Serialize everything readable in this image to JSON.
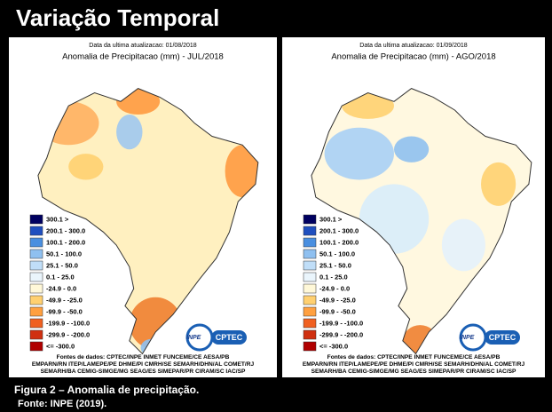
{
  "header": {
    "title": "Variação Temporal"
  },
  "panels": [
    {
      "updated": "Data da ultima atualizacao: 01/08/2018",
      "title": "Anomalia de Precipitacao (mm) - JUL/2018",
      "legend": [
        "300.1 >",
        "200.1 - 300.0",
        "100.1 - 200.0",
        "50.1 - 100.0",
        "25.1 - 50.0",
        "0.1 - 25.0",
        "-24.9 - 0.0",
        "-49.9 - -25.0",
        "-99.9 - -50.0",
        "-199.9 - -100.0",
        "-299.9 - -200.0",
        "<= -300.0"
      ],
      "logo": [
        "INPE",
        "CPTEC"
      ],
      "sources": [
        "Fontes de dados: CPTEC/INPE INMET FUNCEME/CE AESA/PB",
        "EMPARN/RN ITEP/LAMEPE/PE DHME/PI CMRH/SE SEMARH/DHN/AL COMET/RJ",
        "SEMARH/BA CEMIG-SIMGE/MG SEAG/ES SIMEPAR/PR CIRAM/SC IAC/SP"
      ]
    },
    {
      "updated": "Data da ultima atualizacao: 01/09/2018",
      "title": "Anomalia de Precipitacao (mm) - AGO/2018",
      "legend": [
        "300.1 >",
        "200.1 - 300.0",
        "100.1 - 200.0",
        "50.1 - 100.0",
        "25.1 - 50.0",
        "0.1 - 25.0",
        "-24.9 - 0.0",
        "-49.9 - -25.0",
        "-99.9 - -50.0",
        "-199.9 - -100.0",
        "-299.9 - -200.0",
        "<= -300.0"
      ],
      "logo": [
        "INPE",
        "CPTEC"
      ],
      "sources": [
        "Fontes de dados: CPTEC/INPE INMET FUNCEME/CE AESA/PB",
        "EMPARN/RN ITEP/LAMEPE/PE DHME/PI CMRH/SE SEMARH/DHN/AL COMET/RJ",
        "SEMARH/BA CEMIG-SIMGE/MG SEAG/ES SIMEPAR/PR CIRAM/SC IAC/SP"
      ]
    }
  ],
  "caption": {
    "figure": "Figura 2 – Anomalia de precipitação.",
    "source": "Fonte: INPE (2019)."
  }
}
